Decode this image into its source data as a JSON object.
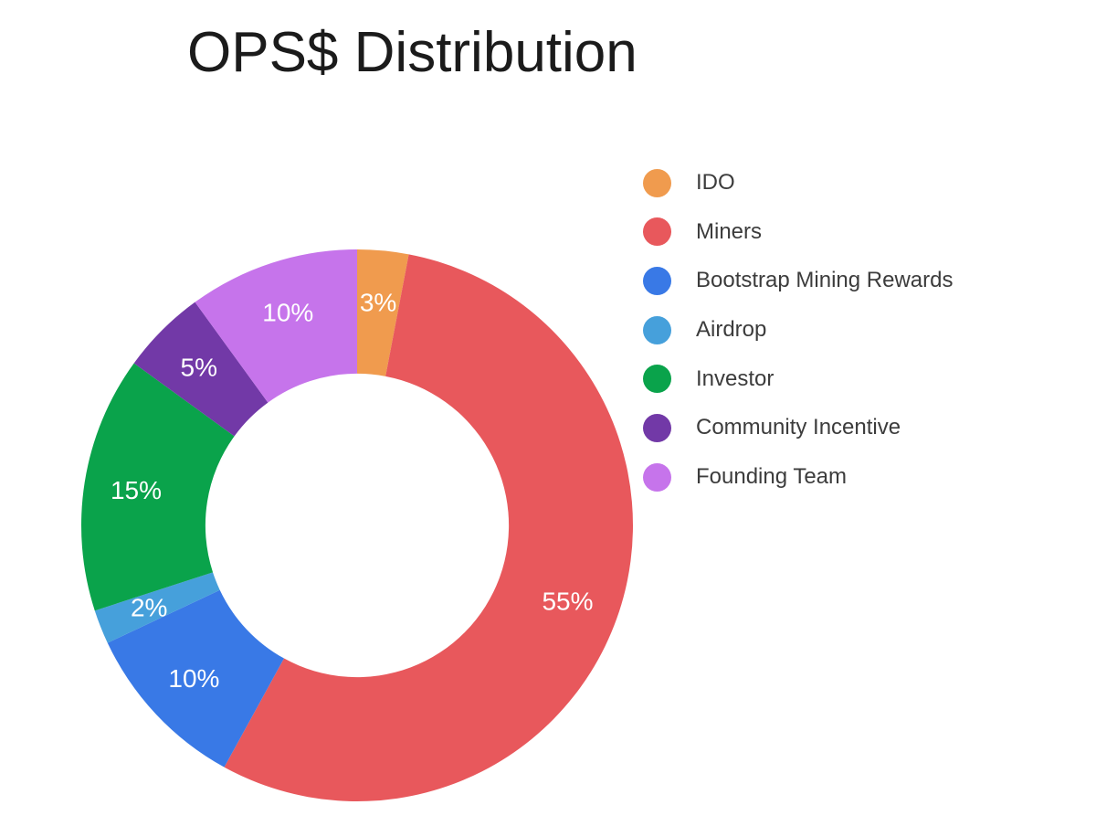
{
  "title": "OPS$ Distribution",
  "chart_data": {
    "type": "pie",
    "subtype": "donut",
    "title": "OPS$ Distribution",
    "unit": "percent",
    "start_angle_deg": 0,
    "direction": "clockwise",
    "inner_radius_ratio": 0.55,
    "legend_position": "right",
    "slice_label_color": "#ffffff",
    "series": [
      {
        "label": "IDO",
        "value": 3,
        "pct_label": "3%",
        "color": "#F09B4E"
      },
      {
        "label": "Miners",
        "value": 55,
        "pct_label": "55%",
        "color": "#E8585C"
      },
      {
        "label": "Bootstrap Mining Rewards",
        "value": 10,
        "pct_label": "10%",
        "color": "#3979E6"
      },
      {
        "label": "Airdrop",
        "value": 2,
        "pct_label": "2%",
        "color": "#46A0DB"
      },
      {
        "label": "Investor",
        "value": 15,
        "pct_label": "15%",
        "color": "#0AA34B"
      },
      {
        "label": "Community Incentive",
        "value": 5,
        "pct_label": "5%",
        "color": "#7239A7"
      },
      {
        "label": "Founding Team",
        "value": 10,
        "pct_label": "10%",
        "color": "#C674EB"
      }
    ]
  }
}
